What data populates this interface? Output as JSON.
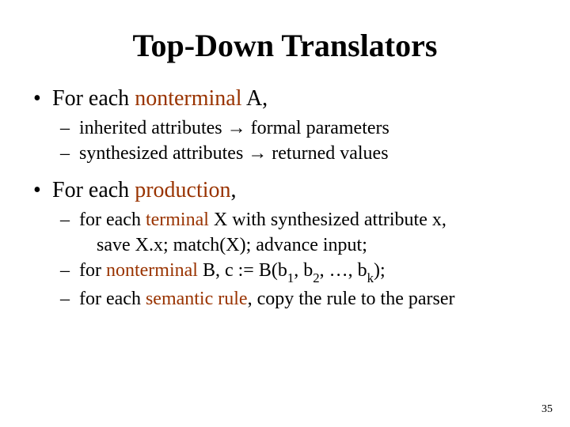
{
  "title": "Top-Down Translators",
  "colors": {
    "term": "#993300",
    "text": "#000000",
    "bg": "#ffffff"
  },
  "fontsizes": {
    "title": 40,
    "l1": 28,
    "l2": 24,
    "pagenum": 14
  },
  "bullet1": {
    "prefix": "For each ",
    "term": "nonterminal",
    "suffix": " A,"
  },
  "sub1a": {
    "prefix": "inherited attributes ",
    "arrow": "→",
    "suffix": " formal parameters"
  },
  "sub1b": {
    "prefix": "synthesized attributes ",
    "arrow": "→",
    "suffix": " returned values"
  },
  "bullet2": {
    "prefix": "For each ",
    "term": "production",
    "suffix": ","
  },
  "sub2a": {
    "prefix": "for each ",
    "term": "terminal",
    "mid": " X with synthesized attribute x,",
    "line2": "save X.x;  match(X);  advance input;"
  },
  "sub2b": {
    "prefix": "for ",
    "term": "nonterminal",
    "mid1": " B, c := B(b",
    "s1": "1",
    "c1": ", b",
    "s2": "2",
    "c2": ", …, b",
    "sk": "k",
    "end": ");"
  },
  "sub2c": {
    "prefix": "for each ",
    "term": "semantic rule",
    "suffix": ", copy the rule to the parser"
  },
  "pagenum": "35"
}
